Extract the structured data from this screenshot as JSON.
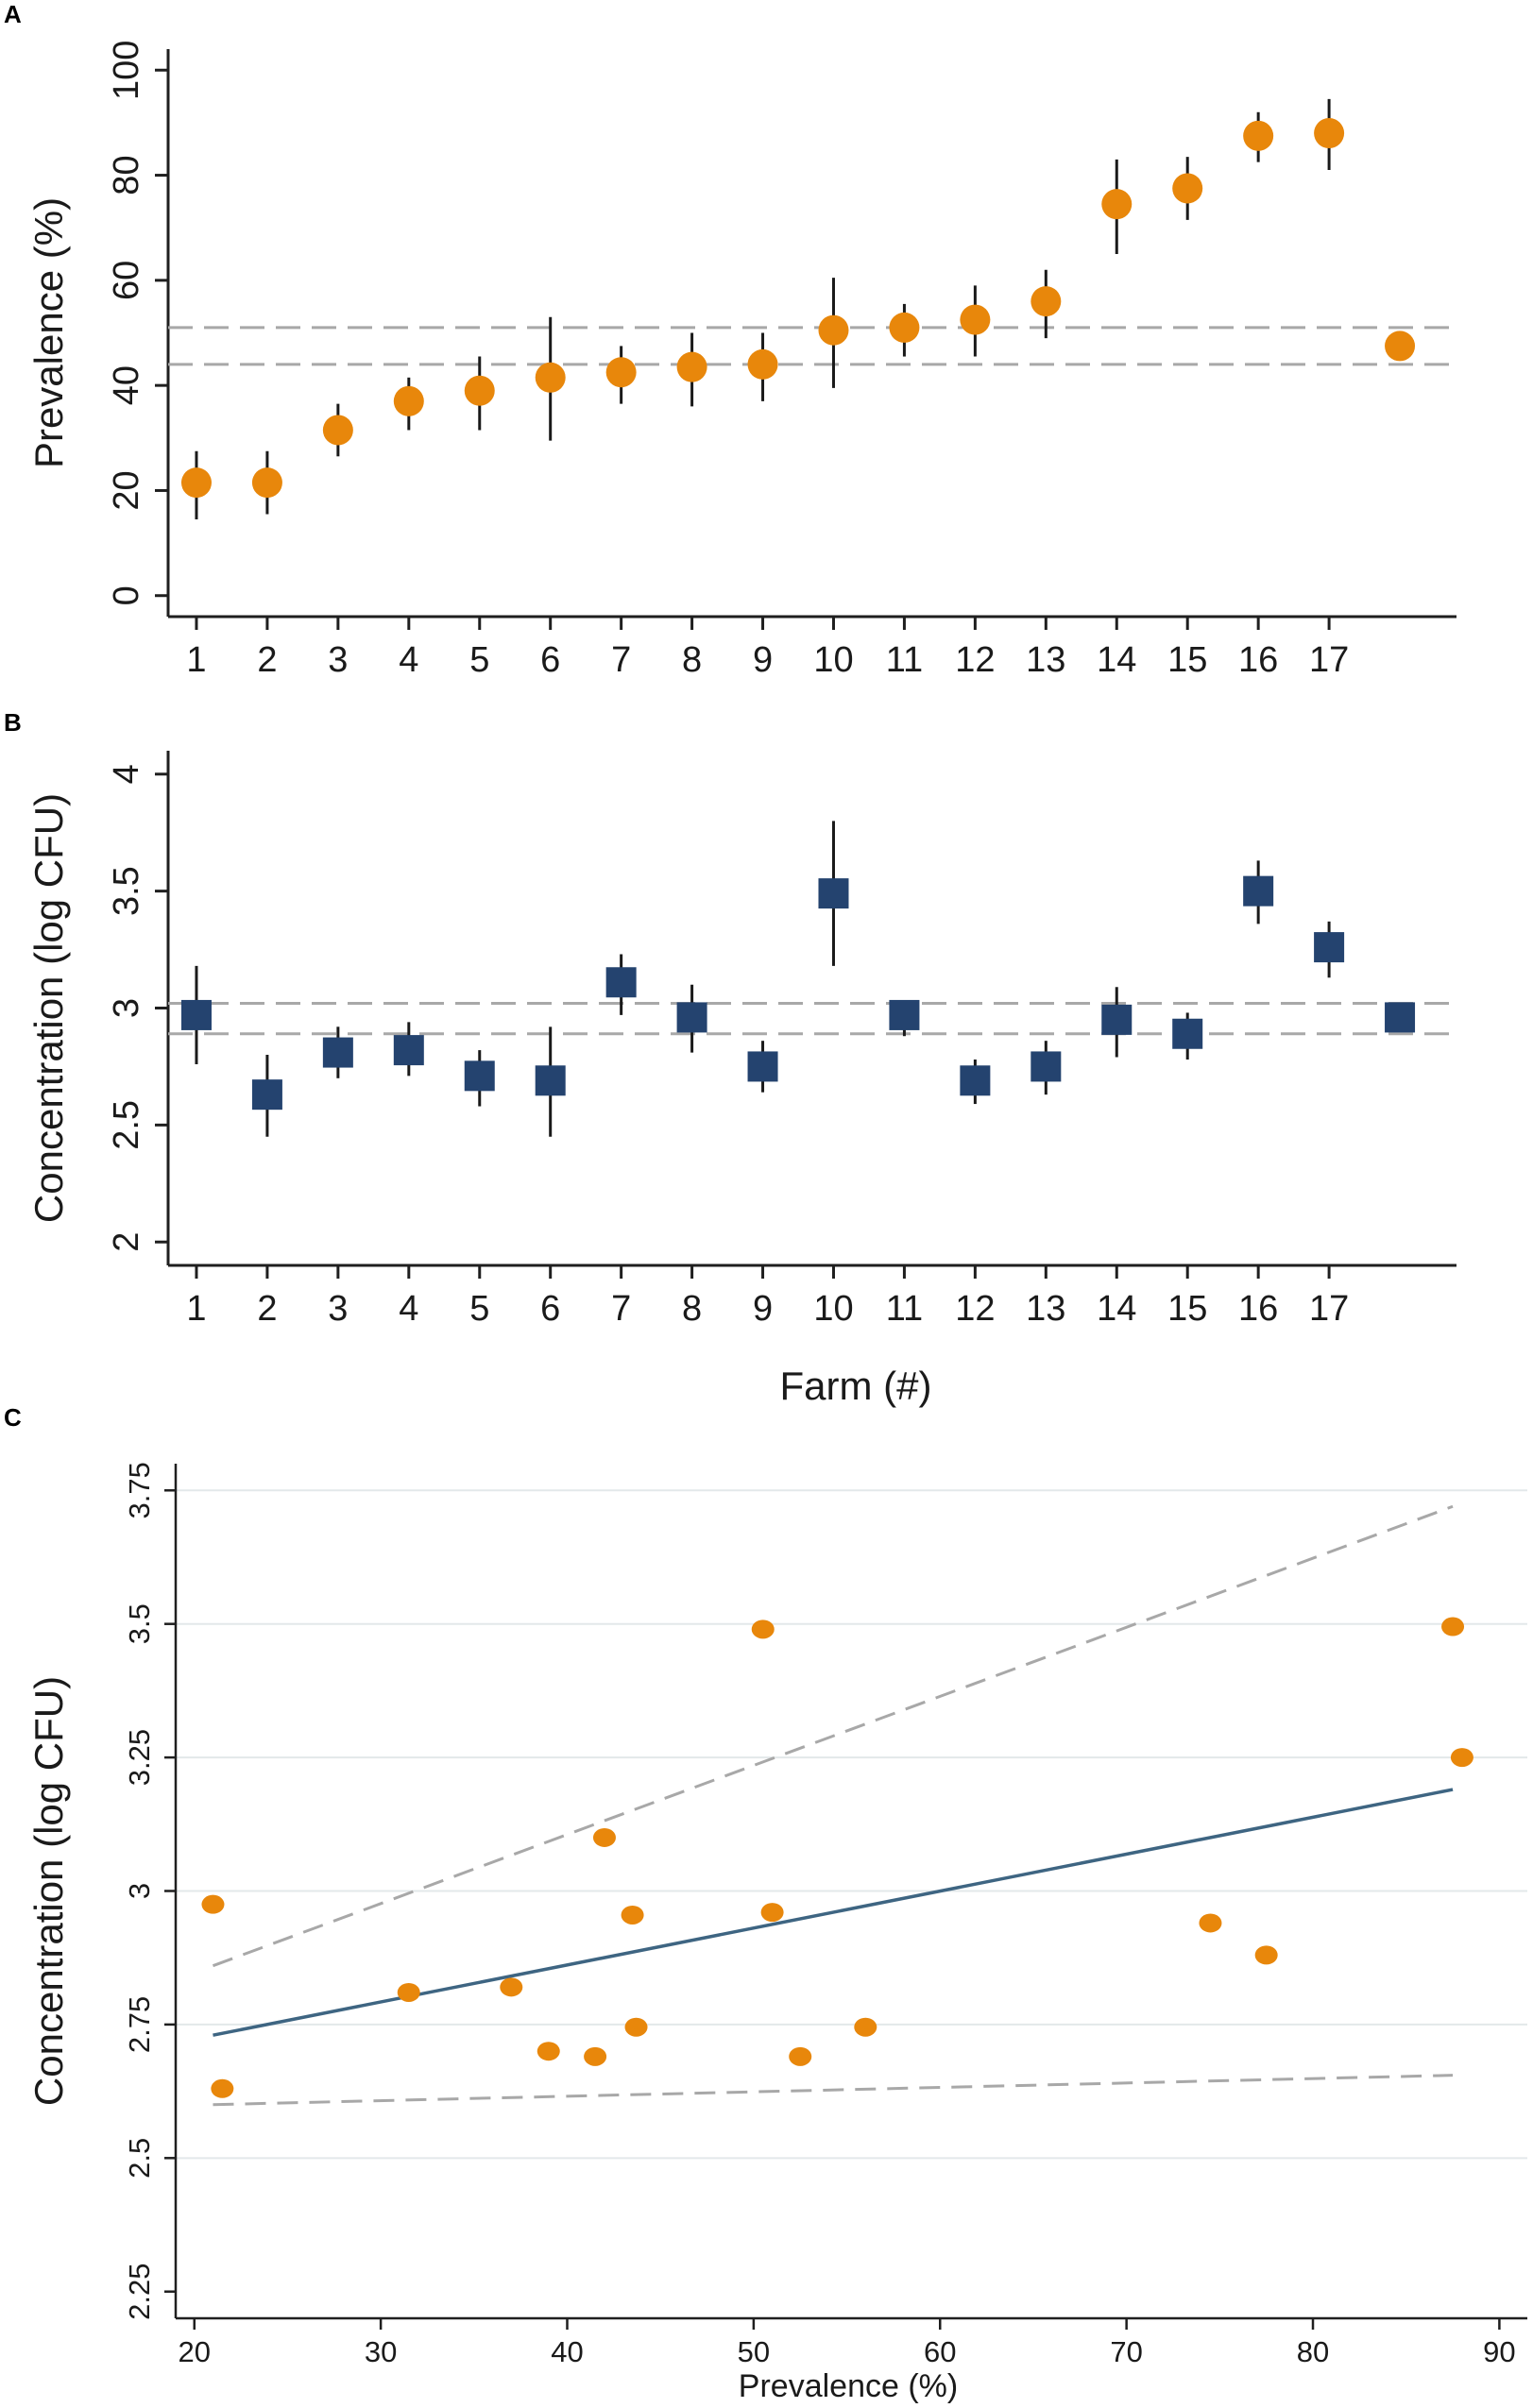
{
  "colors": {
    "orange": "#e8870b",
    "navy": "#24436f",
    "dash": "#a8a8a8",
    "axis": "#1f1f1f",
    "fit": "#3e6582",
    "grid": "#e3e8ea"
  },
  "chart_data": [
    {
      "panel": "A",
      "type": "scatter",
      "marker": "circle",
      "ylabel": "Prevalence  (%)",
      "xlabel": "",
      "categories": [
        "1",
        "2",
        "3",
        "4",
        "5",
        "6",
        "7",
        "8",
        "9",
        "10",
        "11",
        "12",
        "13",
        "14",
        "15",
        "16",
        "17"
      ],
      "yticks": [
        0,
        20,
        40,
        60,
        80,
        100
      ],
      "ylim": [
        -4,
        104
      ],
      "xlim": [
        0.6,
        18.8
      ],
      "points": [
        {
          "x": 1,
          "y": 21.5,
          "lo": 14.5,
          "hi": 27.5
        },
        {
          "x": 2,
          "y": 21.5,
          "lo": 15.5,
          "hi": 27.5
        },
        {
          "x": 3,
          "y": 31.5,
          "lo": 26.5,
          "hi": 36.5
        },
        {
          "x": 4,
          "y": 37,
          "lo": 31.5,
          "hi": 41.5
        },
        {
          "x": 5,
          "y": 39,
          "lo": 31.5,
          "hi": 45.5
        },
        {
          "x": 6,
          "y": 41.5,
          "lo": 29.5,
          "hi": 53
        },
        {
          "x": 7,
          "y": 42.5,
          "lo": 36.5,
          "hi": 47.5
        },
        {
          "x": 8,
          "y": 43.5,
          "lo": 36,
          "hi": 50
        },
        {
          "x": 9,
          "y": 44,
          "lo": 37,
          "hi": 50
        },
        {
          "x": 10,
          "y": 50.5,
          "lo": 39.5,
          "hi": 60.5
        },
        {
          "x": 11,
          "y": 51,
          "lo": 45.5,
          "hi": 55.5
        },
        {
          "x": 12,
          "y": 52.5,
          "lo": 45.5,
          "hi": 59
        },
        {
          "x": 13,
          "y": 56,
          "lo": 49,
          "hi": 62
        },
        {
          "x": 14,
          "y": 74.5,
          "lo": 65,
          "hi": 83
        },
        {
          "x": 15,
          "y": 77.5,
          "lo": 71.5,
          "hi": 83.5
        },
        {
          "x": 16,
          "y": 87.5,
          "lo": 82.5,
          "hi": 92
        },
        {
          "x": 17,
          "y": 88,
          "lo": 81,
          "hi": 94.5
        },
        {
          "x": 18,
          "y": 47.5
        }
      ],
      "reference_lines": [
        44,
        51
      ]
    },
    {
      "panel": "B",
      "type": "scatter",
      "marker": "square",
      "ylabel": "Concentration  (log CFU)",
      "xlabel": "Farm (#)",
      "categories": [
        "1",
        "2",
        "3",
        "4",
        "5",
        "6",
        "7",
        "8",
        "9",
        "10",
        "11",
        "12",
        "13",
        "14",
        "15",
        "16",
        "17"
      ],
      "yticks": [
        "2",
        "2.5",
        "3",
        "3.5",
        "4"
      ],
      "ylim": [
        1.9,
        4.1
      ],
      "xlim": [
        0.6,
        18.8
      ],
      "points": [
        {
          "x": 1,
          "y": 2.97,
          "lo": 2.76,
          "hi": 3.18
        },
        {
          "x": 2,
          "y": 2.63,
          "lo": 2.45,
          "hi": 2.8
        },
        {
          "x": 3,
          "y": 2.81,
          "lo": 2.7,
          "hi": 2.92
        },
        {
          "x": 4,
          "y": 2.82,
          "lo": 2.71,
          "hi": 2.94
        },
        {
          "x": 5,
          "y": 2.71,
          "lo": 2.58,
          "hi": 2.82
        },
        {
          "x": 6,
          "y": 2.69,
          "lo": 2.45,
          "hi": 2.92
        },
        {
          "x": 7,
          "y": 3.11,
          "lo": 2.97,
          "hi": 3.23
        },
        {
          "x": 8,
          "y": 2.96,
          "lo": 2.81,
          "hi": 3.1
        },
        {
          "x": 9,
          "y": 2.75,
          "lo": 2.64,
          "hi": 2.86
        },
        {
          "x": 10,
          "y": 3.49,
          "lo": 3.18,
          "hi": 3.8
        },
        {
          "x": 11,
          "y": 2.97,
          "lo": 2.88,
          "hi": 3.03
        },
        {
          "x": 12,
          "y": 2.69,
          "lo": 2.59,
          "hi": 2.78
        },
        {
          "x": 13,
          "y": 2.75,
          "lo": 2.63,
          "hi": 2.86
        },
        {
          "x": 14,
          "y": 2.95,
          "lo": 2.79,
          "hi": 3.09
        },
        {
          "x": 15,
          "y": 2.89,
          "lo": 2.78,
          "hi": 2.98
        },
        {
          "x": 16,
          "y": 3.5,
          "lo": 3.36,
          "hi": 3.63
        },
        {
          "x": 17,
          "y": 3.26,
          "lo": 3.13,
          "hi": 3.37
        },
        {
          "x": 18,
          "y": 2.96
        }
      ],
      "reference_lines": [
        2.89,
        3.02
      ]
    },
    {
      "panel": "C",
      "type": "scatter",
      "marker": "circle",
      "xlabel": "Prevalence (%)",
      "ylabel": "Concentration  (log CFU)",
      "xticks": [
        20,
        30,
        40,
        50,
        60,
        70,
        80,
        90
      ],
      "yticks": [
        "2.25",
        "2.5",
        "2.75",
        "3",
        "3.25",
        "3.5",
        "3.75"
      ],
      "xlim": [
        19,
        91.5
      ],
      "ylim": [
        2.2,
        3.8
      ],
      "grid": true,
      "points": [
        {
          "x": 21.0,
          "y": 2.975
        },
        {
          "x": 21.5,
          "y": 2.63
        },
        {
          "x": 31.5,
          "y": 2.81
        },
        {
          "x": 37.0,
          "y": 2.82
        },
        {
          "x": 39.0,
          "y": 2.7
        },
        {
          "x": 41.5,
          "y": 2.69
        },
        {
          "x": 42.0,
          "y": 3.1
        },
        {
          "x": 43.5,
          "y": 2.955
        },
        {
          "x": 43.7,
          "y": 2.745
        },
        {
          "x": 50.5,
          "y": 3.49
        },
        {
          "x": 51.0,
          "y": 2.96
        },
        {
          "x": 52.5,
          "y": 2.69
        },
        {
          "x": 56.0,
          "y": 2.745
        },
        {
          "x": 74.5,
          "y": 2.94
        },
        {
          "x": 77.5,
          "y": 2.88
        },
        {
          "x": 87.5,
          "y": 3.495
        },
        {
          "x": 88.0,
          "y": 3.25
        }
      ],
      "fit_line": {
        "x": [
          21,
          87.5
        ],
        "y": [
          2.73,
          3.19
        ]
      },
      "ci_upper": {
        "x": [
          21,
          87.5
        ],
        "y": [
          2.86,
          3.72
        ]
      },
      "ci_lower": {
        "x": [
          21,
          87.5
        ],
        "y": [
          2.6,
          2.655
        ]
      }
    }
  ]
}
